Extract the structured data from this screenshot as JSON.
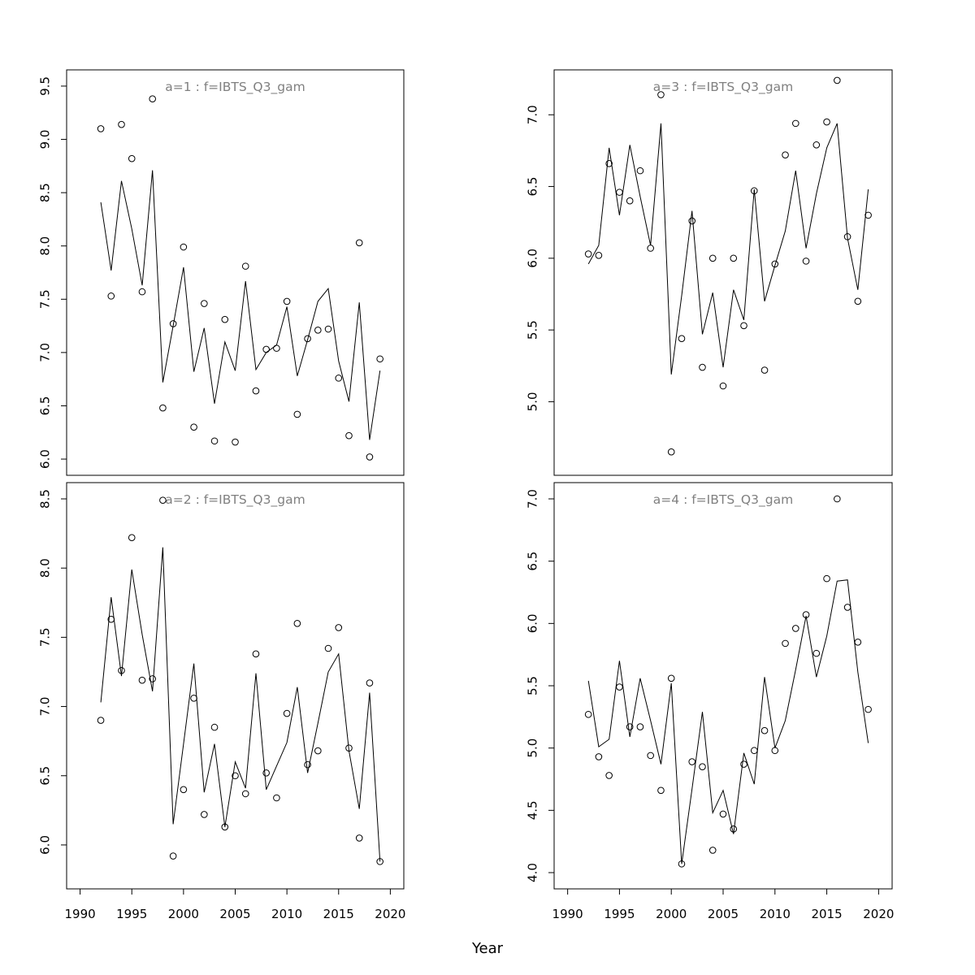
{
  "figure": {
    "xlabel": "Year"
  },
  "chart_data": [
    {
      "type": "scatter",
      "title": "a=1  :  f=IBTS_Q3_gam",
      "xlim": [
        1990,
        2020
      ],
      "ylim": [
        6.0,
        9.5
      ],
      "y_ticks": [
        "6.0",
        "6.5",
        "7.0",
        "7.5",
        "8.0",
        "8.5",
        "9.0",
        "9.5"
      ],
      "x": [
        1992,
        1993,
        1994,
        1995,
        1996,
        1997,
        1998,
        1999,
        2000,
        2001,
        2002,
        2003,
        2004,
        2005,
        2006,
        2007,
        2008,
        2009,
        2010,
        2011,
        2012,
        2013,
        2014,
        2015,
        2016,
        2017,
        2018,
        2019
      ],
      "series": [
        {
          "values": [
            9.1,
            7.53,
            9.14,
            8.82,
            7.57,
            9.38,
            6.48,
            7.27,
            7.99,
            6.3,
            7.46,
            6.17,
            7.31,
            6.16,
            7.81,
            6.64,
            7.03,
            7.04,
            7.48,
            6.42,
            7.13,
            7.21,
            7.22,
            6.76,
            6.22,
            8.03,
            6.02,
            6.94
          ]
        },
        {
          "values": [
            8.41,
            7.77,
            8.61,
            8.16,
            7.63,
            8.71,
            6.72,
            7.25,
            7.8,
            6.82,
            7.23,
            6.52,
            7.1,
            6.83,
            7.67,
            6.84,
            7.0,
            7.07,
            7.43,
            6.78,
            7.12,
            7.48,
            7.6,
            6.92,
            6.54,
            7.47,
            6.18,
            6.83
          ]
        }
      ]
    },
    {
      "type": "scatter",
      "title": "a=2  :  f=IBTS_Q3_gam",
      "xlim": [
        1990,
        2020
      ],
      "ylim": [
        5.8,
        8.5
      ],
      "y_ticks": [
        "6.0",
        "6.5",
        "7.0",
        "7.5",
        "8.0",
        "8.5"
      ],
      "x": [
        1992,
        1993,
        1994,
        1995,
        1996,
        1997,
        1998,
        1999,
        2000,
        2001,
        2002,
        2003,
        2004,
        2005,
        2006,
        2007,
        2008,
        2009,
        2010,
        2011,
        2012,
        2013,
        2014,
        2015,
        2016,
        2017,
        2018,
        2019
      ],
      "series": [
        {
          "values": [
            6.9,
            7.63,
            7.26,
            8.22,
            7.19,
            7.2,
            8.49,
            5.92,
            6.4,
            7.06,
            6.22,
            6.85,
            6.13,
            6.5,
            6.37,
            7.38,
            6.52,
            6.34,
            6.95,
            7.6,
            6.58,
            6.68,
            7.42,
            7.57,
            6.7,
            6.05,
            7.17,
            5.88
          ]
        },
        {
          "values": [
            7.03,
            7.79,
            7.22,
            7.99,
            7.52,
            7.11,
            8.15,
            6.15,
            6.73,
            7.31,
            6.38,
            6.73,
            6.13,
            6.6,
            6.41,
            7.24,
            6.4,
            6.57,
            6.74,
            7.14,
            6.52,
            6.88,
            7.25,
            7.38,
            6.68,
            6.26,
            7.1,
            5.88
          ]
        }
      ]
    },
    {
      "type": "scatter",
      "title": "a=3  :  f=IBTS_Q3_gam",
      "xlim": [
        1990,
        2020
      ],
      "ylim": [
        4.6,
        7.2
      ],
      "y_ticks": [
        "5.0",
        "5.5",
        "6.0",
        "6.5",
        "7.0"
      ],
      "x": [
        1992,
        1993,
        1994,
        1995,
        1996,
        1997,
        1998,
        1999,
        2000,
        2001,
        2002,
        2003,
        2004,
        2005,
        2006,
        2007,
        2008,
        2009,
        2010,
        2011,
        2012,
        2013,
        2014,
        2015,
        2016,
        2017,
        2018,
        2019
      ],
      "series": [
        {
          "values": [
            6.03,
            6.02,
            6.66,
            6.46,
            6.4,
            6.61,
            6.07,
            7.14,
            4.65,
            5.44,
            6.26,
            5.24,
            6.0,
            5.11,
            6.0,
            5.53,
            6.47,
            5.22,
            5.96,
            6.72,
            6.94,
            5.98,
            6.79,
            6.95,
            7.24,
            6.15,
            5.7,
            6.3
          ]
        },
        {
          "values": [
            5.96,
            6.09,
            6.77,
            6.3,
            6.79,
            6.43,
            6.09,
            6.94,
            5.19,
            5.74,
            6.33,
            5.47,
            5.76,
            5.24,
            5.78,
            5.57,
            6.48,
            5.7,
            5.95,
            6.19,
            6.61,
            6.07,
            6.45,
            6.77,
            6.94,
            6.14,
            5.78,
            6.48
          ]
        }
      ]
    },
    {
      "type": "scatter",
      "title": "a=4  :  f=IBTS_Q3_gam",
      "xlim": [
        1990,
        2020
      ],
      "ylim": [
        4.0,
        7.0
      ],
      "y_ticks": [
        "4.0",
        "4.5",
        "5.0",
        "5.5",
        "6.0",
        "6.5",
        "7.0"
      ],
      "x": [
        1992,
        1993,
        1994,
        1995,
        1996,
        1997,
        1998,
        1999,
        2000,
        2001,
        2002,
        2003,
        2004,
        2005,
        2006,
        2007,
        2008,
        2009,
        2010,
        2011,
        2012,
        2013,
        2014,
        2015,
        2016,
        2017,
        2018,
        2019
      ],
      "series": [
        {
          "values": [
            5.27,
            4.93,
            4.78,
            5.49,
            5.17,
            5.17,
            4.94,
            4.66,
            5.56,
            4.07,
            4.89,
            4.85,
            4.18,
            4.47,
            4.35,
            4.87,
            4.98,
            5.14,
            4.98,
            5.84,
            5.96,
            6.07,
            5.76,
            6.36,
            7.0,
            6.13,
            5.85,
            5.31
          ]
        },
        {
          "values": [
            5.54,
            5.01,
            5.07,
            5.7,
            5.09,
            5.56,
            5.22,
            4.87,
            5.52,
            4.07,
            4.67,
            5.29,
            4.48,
            4.66,
            4.31,
            4.96,
            4.71,
            5.57,
            5.0,
            5.22,
            5.63,
            6.06,
            5.57,
            5.9,
            6.34,
            6.35,
            5.61,
            5.04
          ]
        }
      ]
    }
  ],
  "x_axis": {
    "ticks": [
      "1990",
      "1995",
      "2000",
      "2005",
      "2010",
      "2015",
      "2020"
    ]
  }
}
